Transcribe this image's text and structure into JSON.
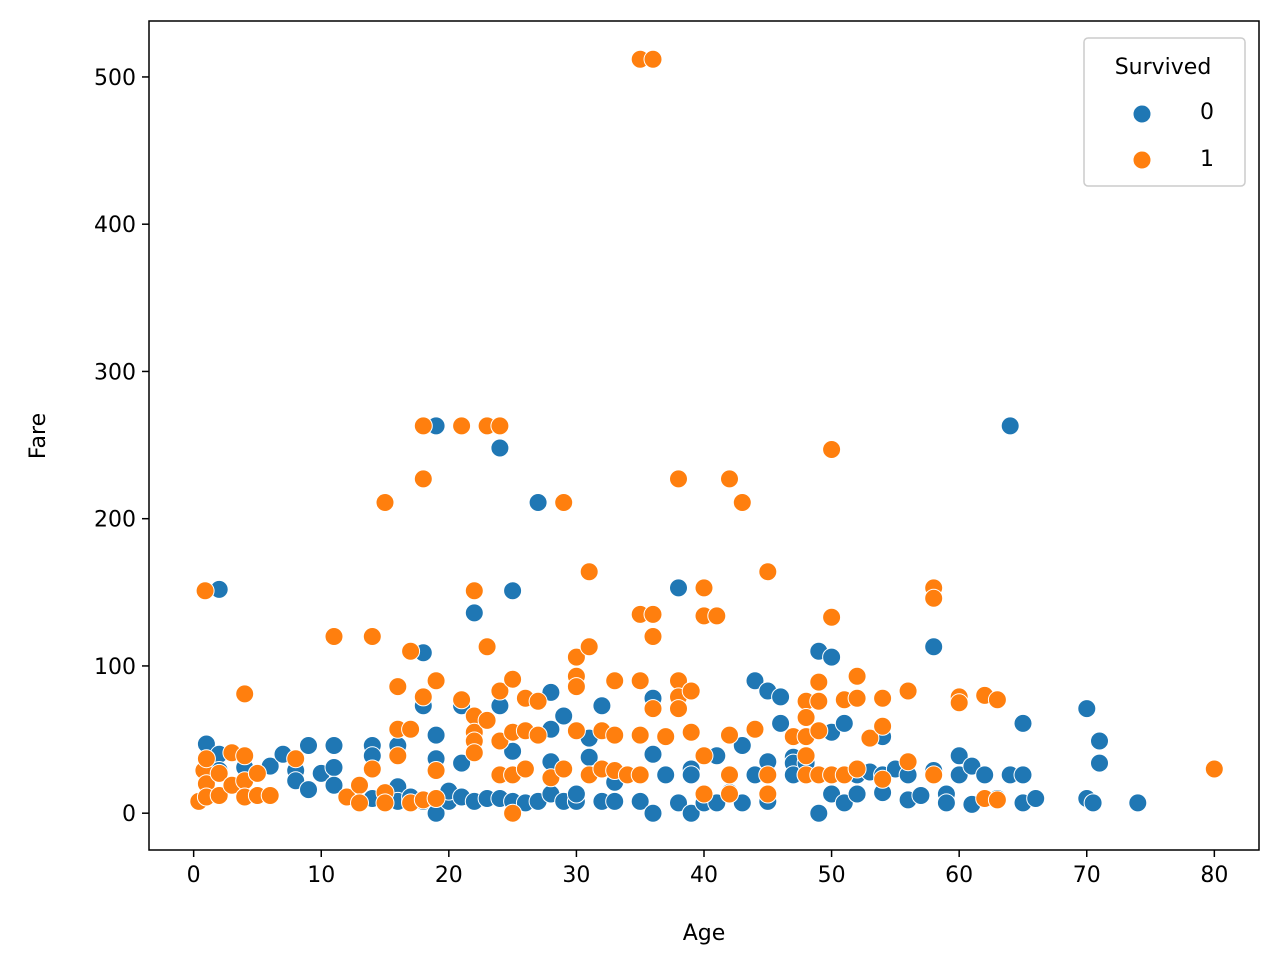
{
  "chart_data": {
    "type": "scatter",
    "title": "",
    "xlabel": "Age",
    "ylabel": "Fare",
    "xlim": [
      -3.5,
      83.5
    ],
    "ylim": [
      -25,
      538
    ],
    "xticks": [
      0,
      10,
      20,
      30,
      40,
      50,
      60,
      70,
      80
    ],
    "yticks": [
      0,
      100,
      200,
      300,
      400,
      500
    ],
    "grid": false,
    "legend": {
      "title": "Survived",
      "position": "top-right"
    },
    "series": [
      {
        "name": "0",
        "color": "#1f77b4",
        "points": [
          [
            1,
            47
          ],
          [
            2,
            40
          ],
          [
            2,
            29
          ],
          [
            2,
            152
          ],
          [
            4,
            31
          ],
          [
            6,
            32
          ],
          [
            7,
            40
          ],
          [
            8,
            29
          ],
          [
            8,
            22
          ],
          [
            9,
            46
          ],
          [
            9,
            16
          ],
          [
            10,
            27
          ],
          [
            11,
            31
          ],
          [
            11,
            46
          ],
          [
            11,
            19
          ],
          [
            14,
            46
          ],
          [
            14,
            39
          ],
          [
            14,
            10
          ],
          [
            16,
            46
          ],
          [
            16,
            18
          ],
          [
            16,
            8
          ],
          [
            17,
            8
          ],
          [
            17,
            11
          ],
          [
            18,
            109
          ],
          [
            18,
            73
          ],
          [
            18,
            8
          ],
          [
            19,
            263
          ],
          [
            19,
            53
          ],
          [
            19,
            37
          ],
          [
            19,
            0
          ],
          [
            20,
            8
          ],
          [
            20,
            15
          ],
          [
            21,
            73
          ],
          [
            21,
            34
          ],
          [
            21,
            11
          ],
          [
            22,
            136
          ],
          [
            22,
            8
          ],
          [
            23,
            10
          ],
          [
            24,
            248
          ],
          [
            24,
            73
          ],
          [
            24,
            10
          ],
          [
            25,
            151
          ],
          [
            25,
            42
          ],
          [
            25,
            8
          ],
          [
            26,
            7
          ],
          [
            27,
            211
          ],
          [
            27,
            8
          ],
          [
            28,
            82
          ],
          [
            28,
            57
          ],
          [
            28,
            35
          ],
          [
            28,
            13
          ],
          [
            29,
            66
          ],
          [
            29,
            8
          ],
          [
            30,
            8
          ],
          [
            30,
            13
          ],
          [
            31,
            51
          ],
          [
            31,
            38
          ],
          [
            32,
            73
          ],
          [
            32,
            8
          ],
          [
            33,
            21
          ],
          [
            33,
            8
          ],
          [
            34,
            26
          ],
          [
            35,
            8
          ],
          [
            36,
            78
          ],
          [
            36,
            40
          ],
          [
            36,
            0
          ],
          [
            37,
            26
          ],
          [
            38,
            153
          ],
          [
            38,
            7
          ],
          [
            39,
            30
          ],
          [
            39,
            26
          ],
          [
            39,
            0
          ],
          [
            40,
            7
          ],
          [
            41,
            39
          ],
          [
            41,
            7
          ],
          [
            42,
            14
          ],
          [
            43,
            46
          ],
          [
            43,
            7
          ],
          [
            44,
            90
          ],
          [
            44,
            26
          ],
          [
            45,
            83
          ],
          [
            45,
            35
          ],
          [
            45,
            8
          ],
          [
            46,
            79
          ],
          [
            46,
            61
          ],
          [
            47,
            38
          ],
          [
            47,
            34
          ],
          [
            47,
            26
          ],
          [
            48,
            34
          ],
          [
            48,
            26
          ],
          [
            49,
            110
          ],
          [
            49,
            0
          ],
          [
            50,
            106
          ],
          [
            50,
            55
          ],
          [
            50,
            26
          ],
          [
            50,
            13
          ],
          [
            51,
            61
          ],
          [
            51,
            7
          ],
          [
            52,
            26
          ],
          [
            52,
            13
          ],
          [
            53,
            28
          ],
          [
            54,
            52
          ],
          [
            54,
            26
          ],
          [
            54,
            14
          ],
          [
            55,
            30
          ],
          [
            56,
            26
          ],
          [
            56,
            9
          ],
          [
            57,
            12
          ],
          [
            58,
            113
          ],
          [
            58,
            29
          ],
          [
            59,
            13
          ],
          [
            59,
            7
          ],
          [
            60,
            39
          ],
          [
            60,
            26
          ],
          [
            61,
            32
          ],
          [
            61,
            6
          ],
          [
            62,
            26
          ],
          [
            63,
            10
          ],
          [
            64,
            263
          ],
          [
            64,
            26
          ],
          [
            65,
            61
          ],
          [
            65,
            26
          ],
          [
            65,
            7
          ],
          [
            66,
            10
          ],
          [
            70,
            71
          ],
          [
            70,
            10
          ],
          [
            70.5,
            7
          ],
          [
            71,
            49
          ],
          [
            71,
            34
          ],
          [
            74,
            7
          ]
        ]
      },
      {
        "name": "1",
        "color": "#ff7f0e",
        "points": [
          [
            0.4,
            8
          ],
          [
            0.8,
            29
          ],
          [
            0.9,
            151
          ],
          [
            1,
            37
          ],
          [
            1,
            20
          ],
          [
            1,
            11
          ],
          [
            2,
            27
          ],
          [
            2,
            12
          ],
          [
            3,
            41
          ],
          [
            3,
            19
          ],
          [
            4,
            81
          ],
          [
            4,
            39
          ],
          [
            4,
            22
          ],
          [
            4,
            11
          ],
          [
            5,
            27
          ],
          [
            5,
            12
          ],
          [
            6,
            12
          ],
          [
            8,
            37
          ],
          [
            11,
            120
          ],
          [
            12,
            11
          ],
          [
            13,
            19
          ],
          [
            13,
            7
          ],
          [
            14,
            120
          ],
          [
            14,
            30
          ],
          [
            15,
            211
          ],
          [
            15,
            14
          ],
          [
            15,
            7
          ],
          [
            16,
            86
          ],
          [
            16,
            57
          ],
          [
            16,
            39
          ],
          [
            17,
            110
          ],
          [
            17,
            57
          ],
          [
            17,
            7
          ],
          [
            18,
            263
          ],
          [
            18,
            227
          ],
          [
            18,
            79
          ],
          [
            18,
            9
          ],
          [
            19,
            90
          ],
          [
            19,
            29
          ],
          [
            19,
            10
          ],
          [
            21,
            263
          ],
          [
            21,
            77
          ],
          [
            22,
            151
          ],
          [
            22,
            66
          ],
          [
            22,
            55
          ],
          [
            22,
            49
          ],
          [
            22,
            41
          ],
          [
            23,
            263
          ],
          [
            23,
            113
          ],
          [
            23,
            63
          ],
          [
            24,
            263
          ],
          [
            24,
            83
          ],
          [
            24,
            49
          ],
          [
            24,
            26
          ],
          [
            25,
            91
          ],
          [
            25,
            55
          ],
          [
            25,
            26
          ],
          [
            25,
            0
          ],
          [
            26,
            78
          ],
          [
            26,
            56
          ],
          [
            26,
            30
          ],
          [
            27,
            76
          ],
          [
            27,
            53
          ],
          [
            28,
            24
          ],
          [
            29,
            211
          ],
          [
            29,
            30
          ],
          [
            30,
            106
          ],
          [
            30,
            93
          ],
          [
            30,
            86
          ],
          [
            30,
            56
          ],
          [
            31,
            164
          ],
          [
            31,
            113
          ],
          [
            31,
            26
          ],
          [
            32,
            56
          ],
          [
            32,
            30
          ],
          [
            33,
            90
          ],
          [
            33,
            53
          ],
          [
            33,
            29
          ],
          [
            34,
            26
          ],
          [
            35,
            512
          ],
          [
            35,
            135
          ],
          [
            35,
            90
          ],
          [
            35,
            53
          ],
          [
            35,
            26
          ],
          [
            36,
            512
          ],
          [
            36,
            135
          ],
          [
            36,
            120
          ],
          [
            36,
            71
          ],
          [
            37,
            52
          ],
          [
            38,
            227
          ],
          [
            38,
            90
          ],
          [
            38,
            79
          ],
          [
            38,
            71
          ],
          [
            39,
            83
          ],
          [
            39,
            55
          ],
          [
            40,
            153
          ],
          [
            40,
            134
          ],
          [
            40,
            39
          ],
          [
            40,
            13
          ],
          [
            41,
            134
          ],
          [
            42,
            227
          ],
          [
            42,
            53
          ],
          [
            42,
            26
          ],
          [
            42,
            13
          ],
          [
            43,
            211
          ],
          [
            44,
            57
          ],
          [
            45,
            164
          ],
          [
            45,
            26
          ],
          [
            45,
            13
          ],
          [
            47,
            52
          ],
          [
            48,
            76
          ],
          [
            48,
            65
          ],
          [
            48,
            52
          ],
          [
            48,
            39
          ],
          [
            48,
            26
          ],
          [
            49,
            89
          ],
          [
            49,
            76
          ],
          [
            49,
            56
          ],
          [
            49,
            26
          ],
          [
            50,
            247
          ],
          [
            50,
            133
          ],
          [
            50,
            26
          ],
          [
            51,
            77
          ],
          [
            51,
            26
          ],
          [
            52,
            93
          ],
          [
            52,
            78
          ],
          [
            52,
            30
          ],
          [
            53,
            51
          ],
          [
            54,
            78
          ],
          [
            54,
            59
          ],
          [
            54,
            23
          ],
          [
            56,
            83
          ],
          [
            56,
            35
          ],
          [
            58,
            153
          ],
          [
            58,
            146
          ],
          [
            58,
            26
          ],
          [
            60,
            79
          ],
          [
            60,
            75
          ],
          [
            62,
            80
          ],
          [
            62,
            10
          ],
          [
            63,
            77
          ],
          [
            63,
            9
          ],
          [
            80,
            30
          ]
        ]
      }
    ]
  }
}
